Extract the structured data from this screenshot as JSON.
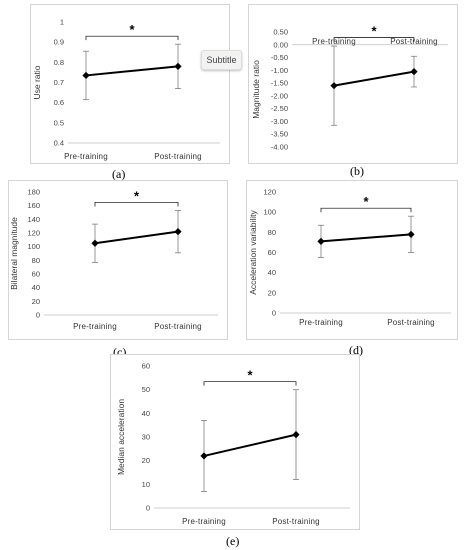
{
  "subtitle_button": "Subtitle",
  "chart_data": [
    {
      "id": "a",
      "type": "line",
      "caption": "(a)",
      "categories": [
        "Pre-training",
        "Post-training"
      ],
      "values": [
        0.735,
        0.78
      ],
      "error": [
        0.12,
        0.11
      ],
      "ylabel": "Use ratio",
      "ylim": [
        0.4,
        1
      ],
      "yticks": [
        "0.4",
        "0.5",
        "0.6",
        "0.7",
        "0.8",
        "0.9",
        "1"
      ],
      "significance": "*"
    },
    {
      "id": "b",
      "type": "line",
      "caption": "(b)",
      "categories": [
        "Pre-training",
        "Post-training"
      ],
      "values": [
        -1.6,
        -1.05
      ],
      "error": [
        1.55,
        0.6
      ],
      "ylabel": "Magnitude ratio",
      "ylim": [
        -4,
        0.5
      ],
      "yticks": [
        "-4.00",
        "-3.50",
        "-3.00",
        "-2.50",
        "-2.00",
        "-1.50",
        "-1.00",
        "-0.50",
        "0.00",
        "0.50"
      ],
      "significance": "*"
    },
    {
      "id": "c",
      "type": "line",
      "caption": "(c)",
      "categories": [
        "Pre-training",
        "Post-training"
      ],
      "values": [
        105,
        122
      ],
      "error": [
        28,
        31
      ],
      "ylabel": "Bilateral magnitude",
      "ylim": [
        0,
        180
      ],
      "yticks": [
        "0",
        "20",
        "40",
        "60",
        "80",
        "100",
        "120",
        "140",
        "160",
        "180"
      ],
      "significance": "*"
    },
    {
      "id": "d",
      "type": "line",
      "caption": "(d)",
      "categories": [
        "Pre-training",
        "Post-training"
      ],
      "values": [
        71,
        78
      ],
      "error": [
        16,
        18
      ],
      "ylabel": "Acceleration variability",
      "ylim": [
        0,
        120
      ],
      "yticks": [
        "0",
        "20",
        "40",
        "60",
        "80",
        "100",
        "120"
      ],
      "significance": "*"
    },
    {
      "id": "e",
      "type": "line",
      "caption": "(e)",
      "categories": [
        "Pre-training",
        "Post-training"
      ],
      "values": [
        22,
        31
      ],
      "error": [
        15,
        19
      ],
      "ylabel": "Median acceleration",
      "ylim": [
        0,
        60
      ],
      "yticks": [
        "0",
        "10",
        "20",
        "30",
        "40",
        "50",
        "60"
      ],
      "significance": "*"
    }
  ]
}
